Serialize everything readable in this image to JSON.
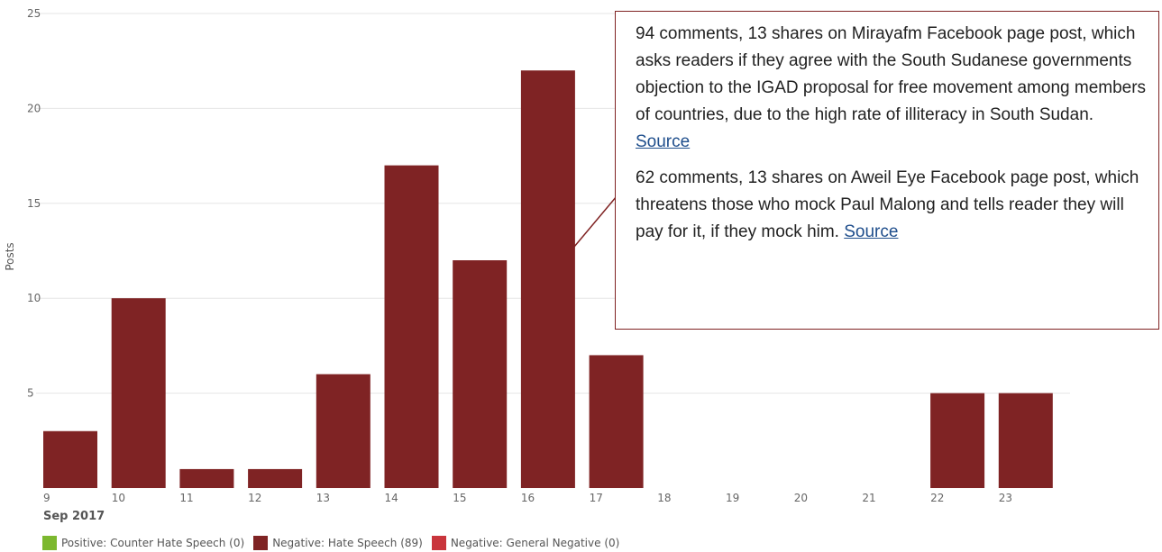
{
  "chart_data": {
    "type": "bar",
    "categories": [
      "9",
      "10",
      "11",
      "12",
      "13",
      "14",
      "15",
      "16",
      "17",
      "18",
      "19",
      "20",
      "21",
      "22",
      "23"
    ],
    "series": [
      {
        "name": "Negative: Hate Speech (89)",
        "values": [
          3,
          10,
          1,
          1,
          6,
          17,
          12,
          22,
          7,
          0,
          0,
          0,
          0,
          5,
          5
        ],
        "color": "#7f2324"
      }
    ],
    "xlabel": "Sep 2017",
    "ylabel": "Posts",
    "ylim": [
      0,
      25
    ],
    "yticks": [
      5,
      10,
      15,
      20,
      25
    ],
    "grid": true,
    "legend_position": "bottom-left"
  },
  "legend": [
    {
      "label": "Positive: Counter Hate Speech (0)",
      "color": "#7cb82f"
    },
    {
      "label": "Negative: Hate Speech (89)",
      "color": "#7f2324"
    },
    {
      "label": "Negative: General Negative (0)",
      "color": "#c9353c"
    }
  ],
  "annotation": {
    "note1_text": "94 comments, 13 shares on Mirayafm Facebook page post, which asks readers if they agree with the South Sudanese governments objection to the IGAD proposal for free movement among members of countries, due to the high rate of illiteracy in South Sudan. ",
    "note1_link": "Source",
    "note2_text": "62 comments, 13 shares on Aweil Eye Facebook page post, which threatens those who mock Paul Malong and tells reader they will pay for it, if they mock him.  ",
    "note2_link": "Source",
    "border_color": "#7f2222",
    "points_to_category": "16"
  }
}
